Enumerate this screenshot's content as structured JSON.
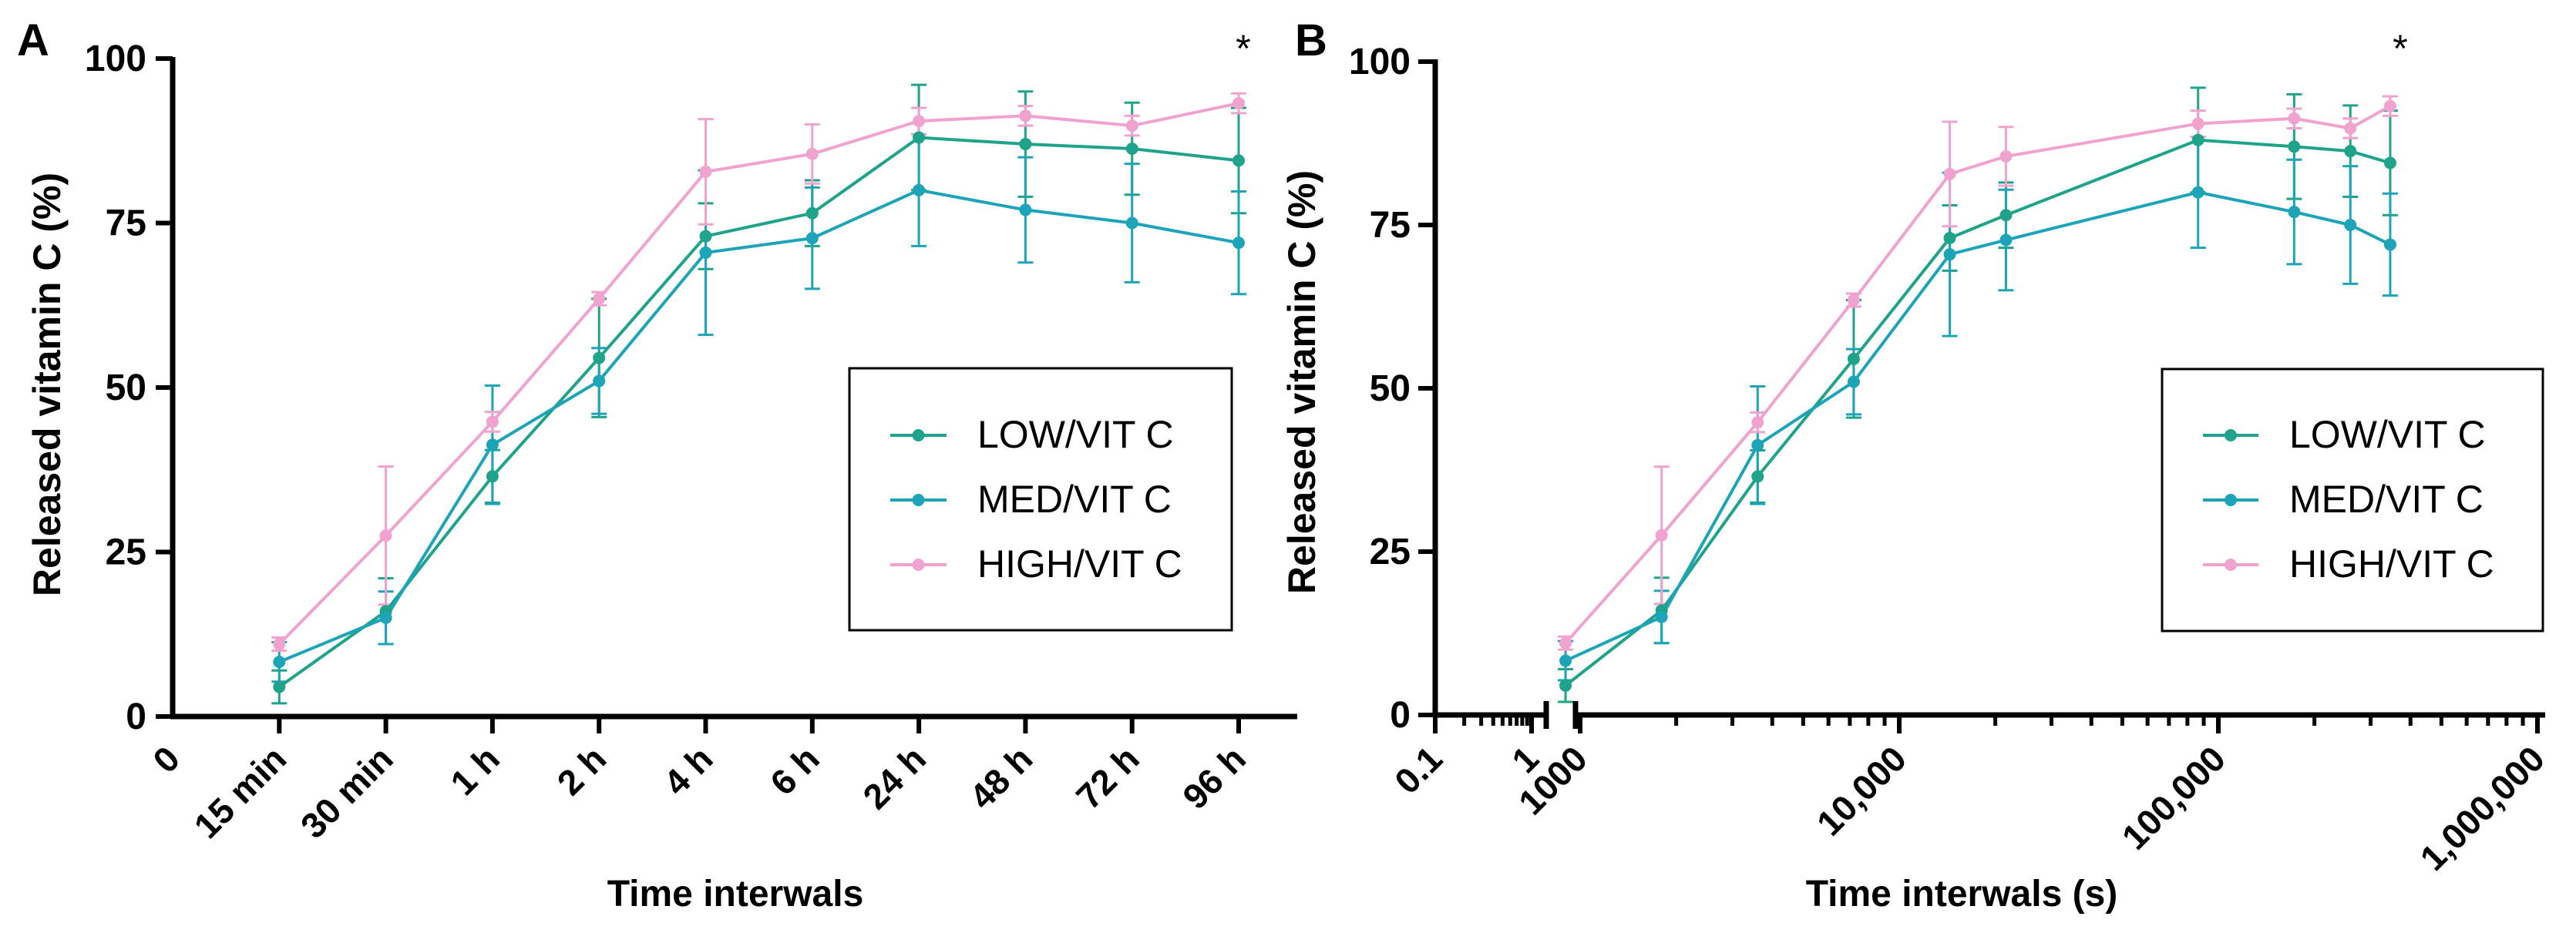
{
  "colors": {
    "low": "#1fa38a",
    "med": "#1ea4b8",
    "high": "#f0a3cf",
    "axis": "#000000",
    "background": "#ffffff"
  },
  "chart_data": [
    {
      "type": "line",
      "panel_label": "A",
      "xlabel": "Time interwals",
      "ylabel": "Released vitamin C (%)",
      "x_scale": "categorical",
      "categories": [
        "0",
        "15 min",
        "30 min",
        "1 h",
        "2 h",
        "4 h",
        "6 h",
        "24 h",
        "48 h",
        "72 h",
        "96 h"
      ],
      "yticks": [
        "0",
        "25",
        "50",
        "75",
        "100"
      ],
      "ylim": [
        0,
        100
      ],
      "annotation": "*",
      "annotation_category": "96 h",
      "legend": {
        "position": "center-right",
        "entries": [
          "LOW/VIT C",
          "MED/VIT C",
          "HIGH/VIT C"
        ]
      },
      "series": [
        {
          "name": "LOW/VIT C",
          "color_key": "low",
          "values": [
            null,
            4.5,
            16,
            36.5,
            54.5,
            73,
            76.5,
            88,
            87,
            86.3,
            84.5
          ],
          "errors": [
            null,
            2.5,
            5,
            4,
            9,
            5,
            5,
            8,
            8,
            7,
            8
          ]
        },
        {
          "name": "MED/VIT C",
          "color_key": "med",
          "values": [
            null,
            8.3,
            15,
            41.3,
            51,
            70.5,
            72.7,
            80,
            77,
            75,
            72
          ],
          "errors": [
            null,
            3,
            4,
            9,
            5,
            12.5,
            7.7,
            8.5,
            8,
            9,
            7.8
          ]
        },
        {
          "name": "HIGH/VIT C",
          "color_key": "high",
          "values": [
            null,
            11,
            27.5,
            44.8,
            63.5,
            82.8,
            85.5,
            90.5,
            91.3,
            89.8,
            93.2
          ],
          "errors": [
            null,
            1,
            10.5,
            1.5,
            1,
            8,
            4.5,
            2,
            1.5,
            1.5,
            1.5
          ]
        }
      ]
    },
    {
      "type": "line",
      "panel_label": "B",
      "xlabel": "Time interwals (s)",
      "ylabel": "Released vitamin C (%)",
      "x_scale": "log",
      "x_axis_break": true,
      "xticks": [
        {
          "value": 0.1,
          "label": "0.1"
        },
        {
          "value": 1,
          "label": "1"
        },
        {
          "value": 1000,
          "label": "1000"
        },
        {
          "value": 10000,
          "label": "10,000"
        },
        {
          "value": 100000,
          "label": "100,000"
        },
        {
          "value": 1000000,
          "label": "1,000,000"
        }
      ],
      "yticks": [
        "0",
        "25",
        "50",
        "75",
        "100"
      ],
      "ylim": [
        0,
        100
      ],
      "annotation": "*",
      "annotation_x": 345600,
      "legend": {
        "position": "center-right",
        "entries": [
          "LOW/VIT C",
          "MED/VIT C",
          "HIGH/VIT C"
        ]
      },
      "x": [
        900,
        1800,
        3600,
        7200,
        14400,
        21600,
        86400,
        172800,
        259200,
        345600
      ],
      "series": [
        {
          "name": "LOW/VIT C",
          "color_key": "low",
          "values": [
            4.5,
            16,
            36.5,
            54.5,
            73,
            76.5,
            88,
            87,
            86.3,
            84.5
          ],
          "errors": [
            2.5,
            5,
            4,
            9,
            5,
            5,
            8,
            8,
            7,
            8
          ]
        },
        {
          "name": "MED/VIT C",
          "color_key": "med",
          "values": [
            8.3,
            15,
            41.3,
            51,
            70.5,
            72.7,
            80,
            77,
            75,
            72
          ],
          "errors": [
            3,
            4,
            9,
            5,
            12.5,
            7.7,
            8.5,
            8,
            9,
            7.8
          ]
        },
        {
          "name": "HIGH/VIT C",
          "color_key": "high",
          "values": [
            11,
            27.5,
            44.8,
            63.5,
            82.8,
            85.5,
            90.5,
            91.3,
            89.8,
            93.2
          ],
          "errors": [
            1,
            10.5,
            1.5,
            1,
            8,
            4.5,
            2,
            1.5,
            1.5,
            1.5
          ]
        }
      ]
    }
  ]
}
